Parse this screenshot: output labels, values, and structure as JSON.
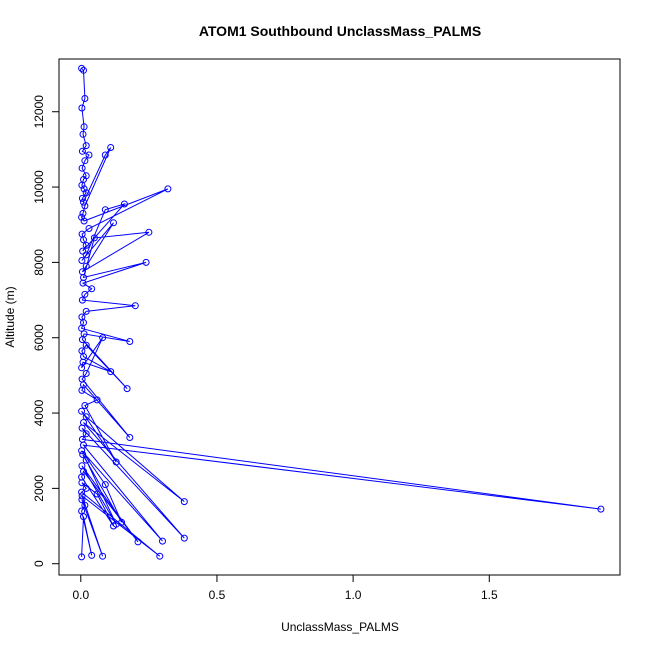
{
  "chart_data": {
    "type": "line",
    "title": "ATOM1 Southbound UnclassMass_PALMS",
    "xlabel": "UnclassMass_PALMS",
    "ylabel": "Altitude (m)",
    "xlim": [
      -0.08,
      1.98
    ],
    "ylim": [
      -300,
      13400
    ],
    "xticks": [
      0.0,
      0.5,
      1.0,
      1.5
    ],
    "xtick_labels": [
      "0.0",
      "0.5",
      "1.0",
      "1.5"
    ],
    "yticks": [
      0,
      2000,
      4000,
      6000,
      8000,
      10000,
      12000
    ],
    "ytick_labels": [
      "0",
      "2000",
      "4000",
      "6000",
      "8000",
      "10000",
      "12000"
    ],
    "grid": false,
    "legend": "none",
    "marker": "open-circle",
    "series_color": "#0000ff",
    "series": [
      {
        "x": [
          0.003,
          0.01,
          0.015,
          0.004,
          0.012,
          0.008,
          0.02,
          0.006,
          0.03,
          0.015,
          0.005,
          0.02,
          0.01,
          0.004,
          0.012,
          0.02,
          0.006,
          0.01,
          0.09,
          0.11,
          0.015,
          0.008,
          0.003,
          0.012,
          0.32,
          0.03,
          0.005,
          0.01,
          0.02,
          0.007,
          0.16,
          0.09,
          0.02,
          0.004,
          0.12,
          0.02,
          0.006,
          0.25,
          0.05,
          0.01,
          0.24,
          0.008,
          0.04,
          0.015,
          0.006,
          0.2,
          0.02,
          0.004,
          0.01,
          0.003,
          0.18,
          0.012,
          0.006,
          0.17,
          0.02,
          0.004,
          0.01,
          0.11,
          0.008,
          0.003,
          0.08,
          0.02,
          0.005,
          0.18,
          0.01,
          0.004,
          0.06,
          0.015,
          0.13,
          0.003,
          0.02,
          0.38,
          0.01,
          0.38,
          0.005,
          0.02,
          0.006,
          1.91,
          0.01,
          0.3,
          0.003,
          0.09,
          0.15,
          0.007,
          0.02,
          0.13,
          0.004,
          0.21,
          0.01,
          0.003,
          0.12,
          0.06,
          0.004,
          0.02,
          0.003,
          0.29,
          0.005,
          0.08,
          0.004,
          0.015,
          0.003,
          0.04,
          0.01,
          0.003
        ],
        "y": [
          13150,
          13100,
          12350,
          12100,
          11600,
          11400,
          11100,
          10950,
          10850,
          10700,
          10500,
          10300,
          10200,
          10050,
          9950,
          9850,
          9700,
          9600,
          10850,
          11050,
          9500,
          9300,
          9200,
          9100,
          9950,
          8900,
          8750,
          8600,
          8450,
          8300,
          9550,
          9400,
          8200,
          8050,
          9050,
          7900,
          7750,
          8800,
          8650,
          7600,
          8000,
          7450,
          7300,
          7150,
          7000,
          6850,
          6700,
          6550,
          6400,
          6250,
          5900,
          6100,
          5950,
          4650,
          5800,
          5650,
          5500,
          5100,
          5350,
          5200,
          6000,
          5050,
          4900,
          3350,
          4750,
          4600,
          4350,
          4200,
          2700,
          4050,
          3900,
          1650,
          3750,
          680,
          3600,
          3450,
          3300,
          1450,
          3150,
          600,
          3000,
          2100,
          1100,
          2900,
          2750,
          1050,
          2600,
          580,
          2450,
          2300,
          1000,
          1850,
          2150,
          2000,
          1900,
          200,
          1800,
          200,
          1700,
          1550,
          1400,
          220,
          1250,
          180
        ]
      }
    ]
  }
}
